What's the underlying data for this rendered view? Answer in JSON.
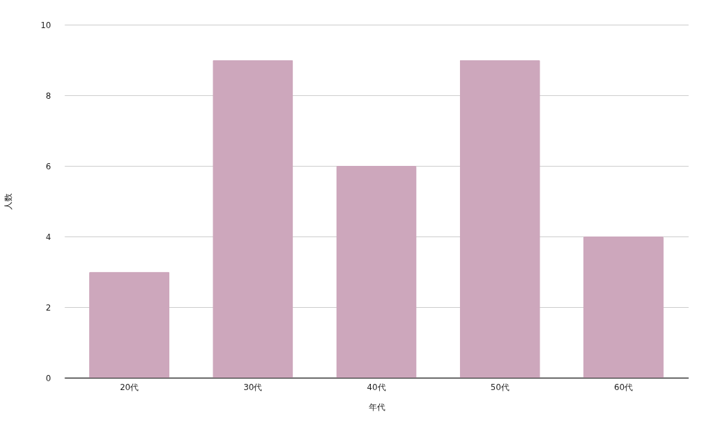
{
  "chart_data": {
    "type": "bar",
    "xlabel": "年代",
    "ylabel": "人数",
    "categories": [
      "20代",
      "30代",
      "40代",
      "50代",
      "60代"
    ],
    "values": [
      3,
      9,
      6,
      9,
      4
    ],
    "color": "#cda7bc",
    "ylim": [
      0,
      10
    ],
    "yticks": [
      0,
      2,
      4,
      6,
      8,
      10
    ],
    "grid": "y"
  }
}
